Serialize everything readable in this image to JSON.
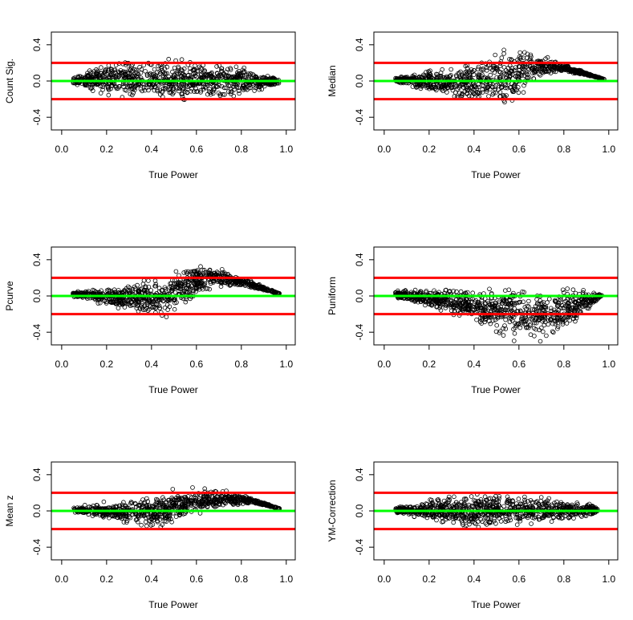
{
  "chart_data": {
    "type": "scatter",
    "shared": {
      "xlabel": "True Power",
      "xlim": [
        -0.046,
        1.04
      ],
      "ylim": [
        -0.54,
        0.54
      ],
      "xticks": [
        "0.0",
        "0.2",
        "0.4",
        "0.6",
        "0.8",
        "1.0"
      ],
      "yticks": [
        "-0.4",
        "0.0",
        "0.4"
      ],
      "reference_lines": [
        {
          "y": 0.2,
          "color": "#ff0000"
        },
        {
          "y": 0.0,
          "color": "#00ff00"
        },
        {
          "y": -0.2,
          "color": "#ff0000"
        }
      ],
      "marker_color": "#000000"
    },
    "panels": [
      {
        "ylabel": "Count Sig.",
        "xrange": [
          0.05,
          0.97
        ],
        "lower": [
          [
            0.05,
            -0.04
          ],
          [
            0.2,
            -0.22
          ],
          [
            0.5,
            -0.25
          ],
          [
            0.8,
            -0.2
          ],
          [
            0.97,
            -0.05
          ]
        ],
        "upper": [
          [
            0.05,
            0.05
          ],
          [
            0.2,
            0.25
          ],
          [
            0.5,
            0.28
          ],
          [
            0.8,
            0.2
          ],
          [
            0.97,
            0.03
          ]
        ]
      },
      {
        "ylabel": "Median",
        "xrange": [
          0.05,
          0.98
        ],
        "lower": [
          [
            0.05,
            -0.02
          ],
          [
            0.2,
            -0.15
          ],
          [
            0.4,
            -0.3
          ],
          [
            0.55,
            -0.36
          ],
          [
            0.6,
            -0.2
          ],
          [
            0.7,
            0.0
          ],
          [
            0.8,
            0.1
          ],
          [
            0.98,
            0.02
          ]
        ],
        "upper": [
          [
            0.05,
            0.05
          ],
          [
            0.2,
            0.15
          ],
          [
            0.4,
            0.25
          ],
          [
            0.55,
            0.42
          ],
          [
            0.7,
            0.32
          ],
          [
            0.85,
            0.15
          ],
          [
            0.98,
            0.02
          ]
        ]
      },
      {
        "ylabel": "Pcurve",
        "xrange": [
          0.05,
          0.97
        ],
        "lower": [
          [
            0.05,
            -0.02
          ],
          [
            0.3,
            -0.2
          ],
          [
            0.45,
            -0.3
          ],
          [
            0.55,
            -0.2
          ],
          [
            0.65,
            0.05
          ],
          [
            0.8,
            0.1
          ],
          [
            0.97,
            0.02
          ]
        ],
        "upper": [
          [
            0.05,
            0.05
          ],
          [
            0.3,
            0.15
          ],
          [
            0.5,
            0.3
          ],
          [
            0.58,
            0.42
          ],
          [
            0.75,
            0.28
          ],
          [
            0.97,
            0.03
          ]
        ]
      },
      {
        "ylabel": "Puniform",
        "xrange": [
          0.05,
          0.97
        ],
        "lower": [
          [
            0.05,
            -0.02
          ],
          [
            0.3,
            -0.25
          ],
          [
            0.5,
            -0.45
          ],
          [
            0.6,
            -0.54
          ],
          [
            0.8,
            -0.5
          ],
          [
            0.9,
            -0.2
          ],
          [
            0.97,
            0.0
          ]
        ],
        "upper": [
          [
            0.05,
            0.06
          ],
          [
            0.3,
            0.12
          ],
          [
            0.6,
            0.15
          ],
          [
            0.8,
            0.15
          ],
          [
            0.97,
            0.02
          ]
        ]
      },
      {
        "ylabel": "Mean z",
        "xrange": [
          0.05,
          0.97
        ],
        "lower": [
          [
            0.05,
            -0.02
          ],
          [
            0.3,
            -0.18
          ],
          [
            0.45,
            -0.22
          ],
          [
            0.55,
            -0.1
          ],
          [
            0.7,
            0.0
          ],
          [
            0.85,
            0.08
          ],
          [
            0.97,
            0.02
          ]
        ],
        "upper": [
          [
            0.05,
            0.05
          ],
          [
            0.3,
            0.15
          ],
          [
            0.6,
            0.3
          ],
          [
            0.8,
            0.2
          ],
          [
            0.97,
            0.03
          ]
        ]
      },
      {
        "ylabel": "YM-Correction",
        "xrange": [
          0.05,
          0.95
        ],
        "lower": [
          [
            0.05,
            -0.03
          ],
          [
            0.3,
            -0.2
          ],
          [
            0.6,
            -0.2
          ],
          [
            0.9,
            -0.1
          ],
          [
            0.95,
            -0.02
          ]
        ],
        "upper": [
          [
            0.05,
            0.05
          ],
          [
            0.3,
            0.2
          ],
          [
            0.6,
            0.22
          ],
          [
            0.9,
            0.12
          ],
          [
            0.95,
            0.04
          ]
        ]
      }
    ]
  }
}
